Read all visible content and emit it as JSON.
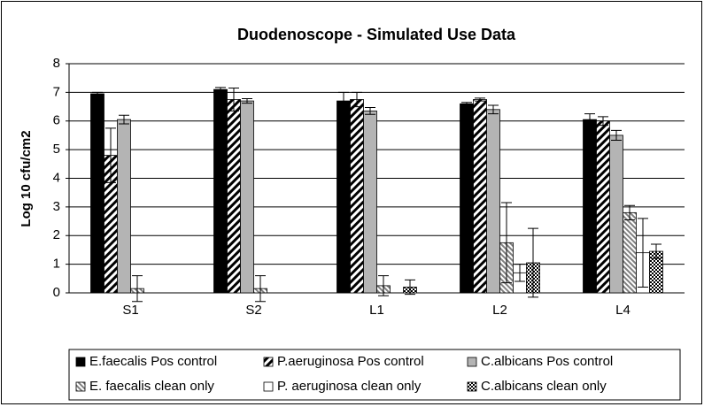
{
  "chart_data": {
    "type": "bar",
    "title": "Duodenoscope - Simulated Use Data",
    "y_label": "Log 10 cfu/cm2",
    "categories": [
      "S1",
      "S2",
      "L1",
      "L2",
      "L4"
    ],
    "ylim": [
      0,
      8
    ],
    "yticks": [
      0,
      1,
      2,
      3,
      4,
      5,
      6,
      7,
      8
    ],
    "grid": true,
    "series": [
      {
        "name": "E.faecalis Pos control",
        "color": "#000000",
        "values": [
          6.95,
          7.1,
          6.7,
          6.6,
          6.05
        ],
        "errors": [
          0.05,
          0.07,
          0.3,
          0.05,
          0.2
        ]
      },
      {
        "name": "P.aeruginosa Pos control",
        "color": "#000000",
        "values": [
          4.8,
          6.75,
          6.75,
          6.75,
          6.0
        ],
        "errors": [
          0.95,
          0.4,
          0.25,
          0.05,
          0.15
        ]
      },
      {
        "name": "C.albicans Pos control",
        "color": "#b4b4b4",
        "values": [
          6.05,
          6.7,
          6.35,
          6.4,
          5.5
        ],
        "errors": [
          0.15,
          0.08,
          0.12,
          0.15,
          0.17
        ]
      },
      {
        "name": "E. faecalis clean only",
        "color": "#808080",
        "values": [
          0.15,
          0.15,
          0.25,
          1.75,
          2.8
        ],
        "errors": [
          0.45,
          0.45,
          0.35,
          1.4,
          0.25
        ]
      },
      {
        "name": "P. aeruginosa clean only",
        "color": "#ffffff",
        "values": [
          0,
          0,
          0,
          0.7,
          1.4
        ],
        "errors": [
          0,
          0,
          0,
          0.3,
          1.2
        ]
      },
      {
        "name": "C.albicans clean only",
        "color": "#000000",
        "values": [
          0,
          0,
          0.2,
          1.05,
          1.45
        ],
        "errors": [
          0,
          0,
          0.25,
          1.2,
          0.25
        ]
      }
    ]
  }
}
